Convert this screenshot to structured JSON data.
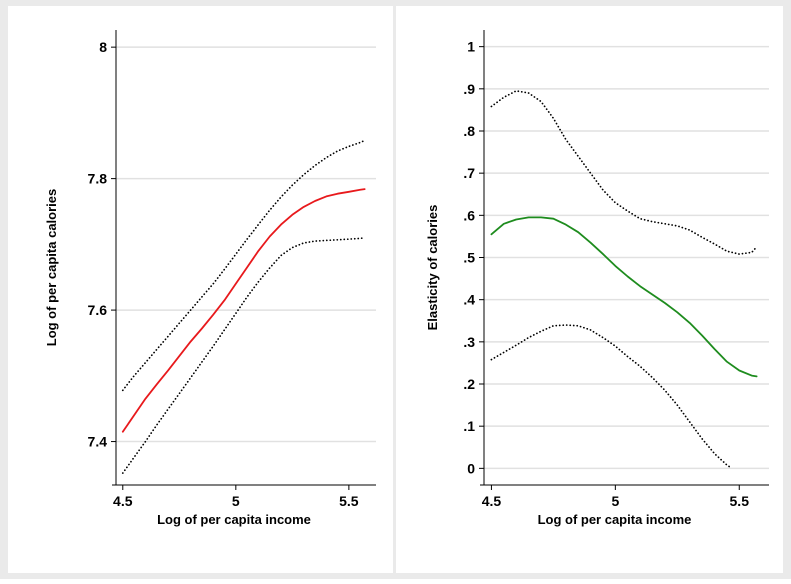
{
  "chart_data": [
    {
      "type": "line",
      "xlabel": "Log of per capita income",
      "ylabel": "Log of per capita calories",
      "xlim": [
        4.47,
        5.62
      ],
      "ylim": [
        7.34,
        8.02
      ],
      "xticks": [
        {
          "value": 4.5,
          "label": "4.5"
        },
        {
          "value": 5,
          "label": "5"
        },
        {
          "value": 5.5,
          "label": "5.5"
        }
      ],
      "yticks": [
        {
          "value": 7.4,
          "label": "7.4"
        },
        {
          "value": 7.6,
          "label": "7.6"
        },
        {
          "value": 7.8,
          "label": "7.8"
        },
        {
          "value": 8.0,
          "label": "8"
        }
      ],
      "grid": true,
      "series": [
        {
          "style": "solid",
          "color": "#e8191c",
          "x": [
            4.5,
            4.55,
            4.6,
            4.65,
            4.7,
            4.75,
            4.8,
            4.85,
            4.9,
            4.95,
            5.0,
            5.05,
            5.1,
            5.15,
            5.2,
            5.25,
            5.3,
            5.35,
            5.4,
            5.45,
            5.5,
            5.55,
            5.57
          ],
          "y": [
            7.415,
            7.44,
            7.465,
            7.487,
            7.508,
            7.53,
            7.552,
            7.572,
            7.593,
            7.615,
            7.64,
            7.665,
            7.69,
            7.712,
            7.73,
            7.745,
            7.757,
            7.766,
            7.773,
            7.777,
            7.78,
            7.783,
            7.784
          ]
        },
        {
          "style": "dotted",
          "color": "#000000",
          "x": [
            4.5,
            4.55,
            4.6,
            4.65,
            4.7,
            4.75,
            4.8,
            4.85,
            4.9,
            4.95,
            5.0,
            5.05,
            5.1,
            5.15,
            5.2,
            5.25,
            5.3,
            5.35,
            5.4,
            5.45,
            5.5,
            5.55,
            5.57
          ],
          "y": [
            7.478,
            7.5,
            7.52,
            7.54,
            7.56,
            7.58,
            7.6,
            7.62,
            7.64,
            7.662,
            7.685,
            7.708,
            7.73,
            7.752,
            7.772,
            7.79,
            7.806,
            7.82,
            7.832,
            7.842,
            7.849,
            7.855,
            7.858
          ]
        },
        {
          "style": "dotted",
          "color": "#000000",
          "x": [
            4.5,
            4.55,
            4.6,
            4.65,
            4.7,
            4.75,
            4.8,
            4.85,
            4.9,
            4.95,
            5.0,
            5.05,
            5.1,
            5.15,
            5.2,
            5.25,
            5.3,
            5.35,
            5.4,
            5.45,
            5.5,
            5.55,
            5.57
          ],
          "y": [
            7.352,
            7.376,
            7.4,
            7.425,
            7.449,
            7.473,
            7.497,
            7.521,
            7.545,
            7.57,
            7.595,
            7.62,
            7.643,
            7.664,
            7.683,
            7.695,
            7.702,
            7.705,
            7.706,
            7.707,
            7.708,
            7.709,
            7.71
          ]
        }
      ]
    },
    {
      "type": "line",
      "xlabel": "Log of per capita income",
      "ylabel": "Elasticity of calories",
      "xlim": [
        4.47,
        5.62
      ],
      "ylim": [
        -0.03,
        1.03
      ],
      "xticks": [
        {
          "value": 4.5,
          "label": "4.5"
        },
        {
          "value": 5,
          "label": "5"
        },
        {
          "value": 5.5,
          "label": "5.5"
        }
      ],
      "yticks": [
        {
          "value": 0,
          "label": "0"
        },
        {
          "value": 0.1,
          "label": ".1"
        },
        {
          "value": 0.2,
          "label": ".2"
        },
        {
          "value": 0.3,
          "label": ".3"
        },
        {
          "value": 0.4,
          "label": ".4"
        },
        {
          "value": 0.5,
          "label": ".5"
        },
        {
          "value": 0.6,
          "label": ".6"
        },
        {
          "value": 0.7,
          "label": ".7"
        },
        {
          "value": 0.8,
          "label": ".8"
        },
        {
          "value": 0.9,
          "label": ".9"
        },
        {
          "value": 1.0,
          "label": "1"
        }
      ],
      "grid": true,
      "series": [
        {
          "style": "solid",
          "color": "#1e8c1e",
          "x": [
            4.5,
            4.55,
            4.6,
            4.65,
            4.7,
            4.75,
            4.8,
            4.85,
            4.9,
            4.95,
            5.0,
            5.05,
            5.1,
            5.15,
            5.2,
            5.25,
            5.3,
            5.35,
            5.4,
            5.45,
            5.5,
            5.55,
            5.57
          ],
          "y": [
            0.555,
            0.58,
            0.59,
            0.595,
            0.595,
            0.592,
            0.578,
            0.56,
            0.535,
            0.508,
            0.48,
            0.455,
            0.432,
            0.412,
            0.392,
            0.37,
            0.345,
            0.315,
            0.283,
            0.253,
            0.232,
            0.22,
            0.218
          ]
        },
        {
          "style": "dotted",
          "color": "#000000",
          "x": [
            4.5,
            4.55,
            4.6,
            4.65,
            4.7,
            4.75,
            4.8,
            4.85,
            4.9,
            4.95,
            5.0,
            5.05,
            5.1,
            5.15,
            5.2,
            5.25,
            5.3,
            5.35,
            5.4,
            5.45,
            5.5,
            5.55,
            5.57
          ],
          "y": [
            0.858,
            0.88,
            0.895,
            0.89,
            0.87,
            0.83,
            0.78,
            0.74,
            0.7,
            0.66,
            0.63,
            0.61,
            0.592,
            0.585,
            0.58,
            0.575,
            0.565,
            0.548,
            0.532,
            0.515,
            0.508,
            0.512,
            0.525
          ]
        },
        {
          "style": "dotted",
          "color": "#000000",
          "x": [
            4.5,
            4.55,
            4.6,
            4.65,
            4.7,
            4.75,
            4.8,
            4.85,
            4.9,
            4.95,
            5.0,
            5.05,
            5.1,
            5.15,
            5.2,
            5.25,
            5.3,
            5.35,
            5.4,
            5.45,
            5.47
          ],
          "y": [
            0.258,
            0.275,
            0.292,
            0.31,
            0.325,
            0.338,
            0.34,
            0.338,
            0.328,
            0.31,
            0.29,
            0.265,
            0.242,
            0.215,
            0.185,
            0.15,
            0.11,
            0.07,
            0.035,
            0.008,
            0.0
          ]
        }
      ]
    }
  ]
}
